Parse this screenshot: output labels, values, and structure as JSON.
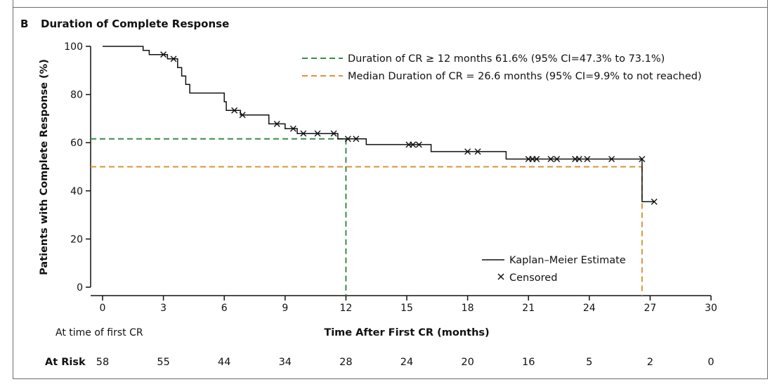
{
  "panel": {
    "letter": "B",
    "title": "Duration of Complete Response"
  },
  "chart_data": {
    "type": "line",
    "title": "Duration of Complete Response",
    "xlabel": "Time After First CR (months)",
    "ylabel": "Patients with Complete Response (%)",
    "xlim": [
      0,
      30
    ],
    "ylim": [
      0,
      100
    ],
    "xticks": [
      0,
      3,
      6,
      9,
      12,
      15,
      18,
      21,
      24,
      27,
      30
    ],
    "yticks": [
      0,
      20,
      40,
      60,
      80,
      100
    ],
    "km_curve": {
      "name": "Kaplan–Meier Estimate",
      "color": "#111111",
      "steps": [
        [
          0,
          100
        ],
        [
          2.0,
          100
        ],
        [
          2.0,
          98.3
        ],
        [
          2.3,
          98.3
        ],
        [
          2.3,
          96.6
        ],
        [
          3.2,
          96.6
        ],
        [
          3.2,
          94.8
        ],
        [
          3.7,
          94.8
        ],
        [
          3.7,
          91.2
        ],
        [
          3.9,
          91.2
        ],
        [
          3.9,
          87.7
        ],
        [
          4.1,
          87.7
        ],
        [
          4.1,
          84.2
        ],
        [
          4.3,
          84.2
        ],
        [
          4.3,
          80.6
        ],
        [
          6.0,
          80.6
        ],
        [
          6.0,
          77.0
        ],
        [
          6.1,
          77.0
        ],
        [
          6.1,
          73.4
        ],
        [
          6.8,
          73.4
        ],
        [
          6.8,
          71.5
        ],
        [
          8.2,
          71.5
        ],
        [
          8.2,
          67.8
        ],
        [
          9.0,
          67.8
        ],
        [
          9.0,
          65.8
        ],
        [
          9.6,
          65.8
        ],
        [
          9.6,
          63.8
        ],
        [
          11.6,
          63.8
        ],
        [
          11.6,
          61.6
        ],
        [
          13.0,
          61.6
        ],
        [
          13.0,
          59.2
        ],
        [
          15.8,
          59.2
        ],
        [
          15.8,
          59.2
        ],
        [
          16.2,
          59.2
        ],
        [
          16.2,
          56.3
        ],
        [
          19.9,
          56.3
        ],
        [
          19.9,
          53.2
        ],
        [
          26.6,
          53.2
        ],
        [
          26.6,
          35.5
        ],
        [
          27.2,
          35.5
        ]
      ]
    },
    "censored": {
      "name": "Censored",
      "points": [
        [
          3.0,
          96.6
        ],
        [
          3.5,
          94.8
        ],
        [
          6.5,
          73.4
        ],
        [
          6.9,
          71.5
        ],
        [
          8.6,
          67.8
        ],
        [
          9.4,
          65.8
        ],
        [
          9.9,
          63.8
        ],
        [
          10.6,
          63.8
        ],
        [
          11.4,
          63.8
        ],
        [
          12.1,
          61.6
        ],
        [
          12.5,
          61.6
        ],
        [
          15.1,
          59.2
        ],
        [
          15.3,
          59.2
        ],
        [
          15.6,
          59.2
        ],
        [
          18.0,
          56.3
        ],
        [
          18.5,
          56.3
        ],
        [
          21.0,
          53.2
        ],
        [
          21.2,
          53.2
        ],
        [
          21.4,
          53.2
        ],
        [
          22.1,
          53.2
        ],
        [
          22.4,
          53.2
        ],
        [
          23.3,
          53.2
        ],
        [
          23.5,
          53.2
        ],
        [
          23.9,
          53.2
        ],
        [
          25.1,
          53.2
        ],
        [
          26.6,
          53.2
        ],
        [
          27.2,
          35.5
        ]
      ]
    },
    "reference_lines": [
      {
        "label": "Duration of CR ≥ 12 months 61.6% (95% CI=47.3% to 73.1%)",
        "color": "#3a8a4f",
        "x": 12,
        "y": 61.6
      },
      {
        "label": "Median Duration of CR = 26.6 months (95% CI=9.9% to not reached)",
        "color": "#d9953a",
        "x": 26.6,
        "y": 50
      }
    ],
    "legend_placement": "inside lower-right",
    "grid": false,
    "at_risk": {
      "row_label": "At Risk",
      "caption": "At time of first CR",
      "times": [
        0,
        3,
        6,
        9,
        12,
        15,
        18,
        21,
        24,
        27,
        30
      ],
      "counts": [
        58,
        55,
        44,
        34,
        28,
        24,
        20,
        16,
        5,
        2,
        0
      ]
    }
  }
}
